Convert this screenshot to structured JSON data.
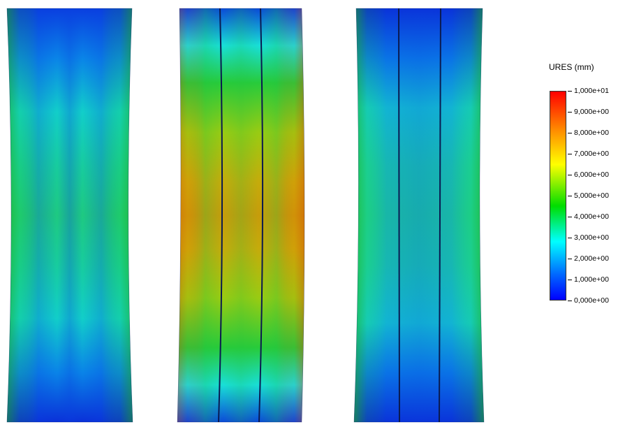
{
  "legend": {
    "title": "URES (mm)",
    "labels": [
      "1,000e+01",
      "9,000e+00",
      "8,000e+00",
      "7,000e+00",
      "6,000e+00",
      "5,000e+00",
      "4,000e+00",
      "3,000e+00",
      "2,000e+00",
      "1,000e+00",
      "0,000e+00"
    ],
    "colors": {
      "max": "#ff0000",
      "orange": "#ff8800",
      "yellow": "#ffff00",
      "green": "#00dd00",
      "cyan": "#00ffff",
      "blue": "#0066ff",
      "min": "#0000ff"
    }
  },
  "panels": [
    {
      "id": "left",
      "segments": 1,
      "peak_value": 5.5
    },
    {
      "id": "middle",
      "segments": 3,
      "peak_value": 8.5
    },
    {
      "id": "right",
      "segments": 3,
      "peak_value": 5.0
    }
  ]
}
